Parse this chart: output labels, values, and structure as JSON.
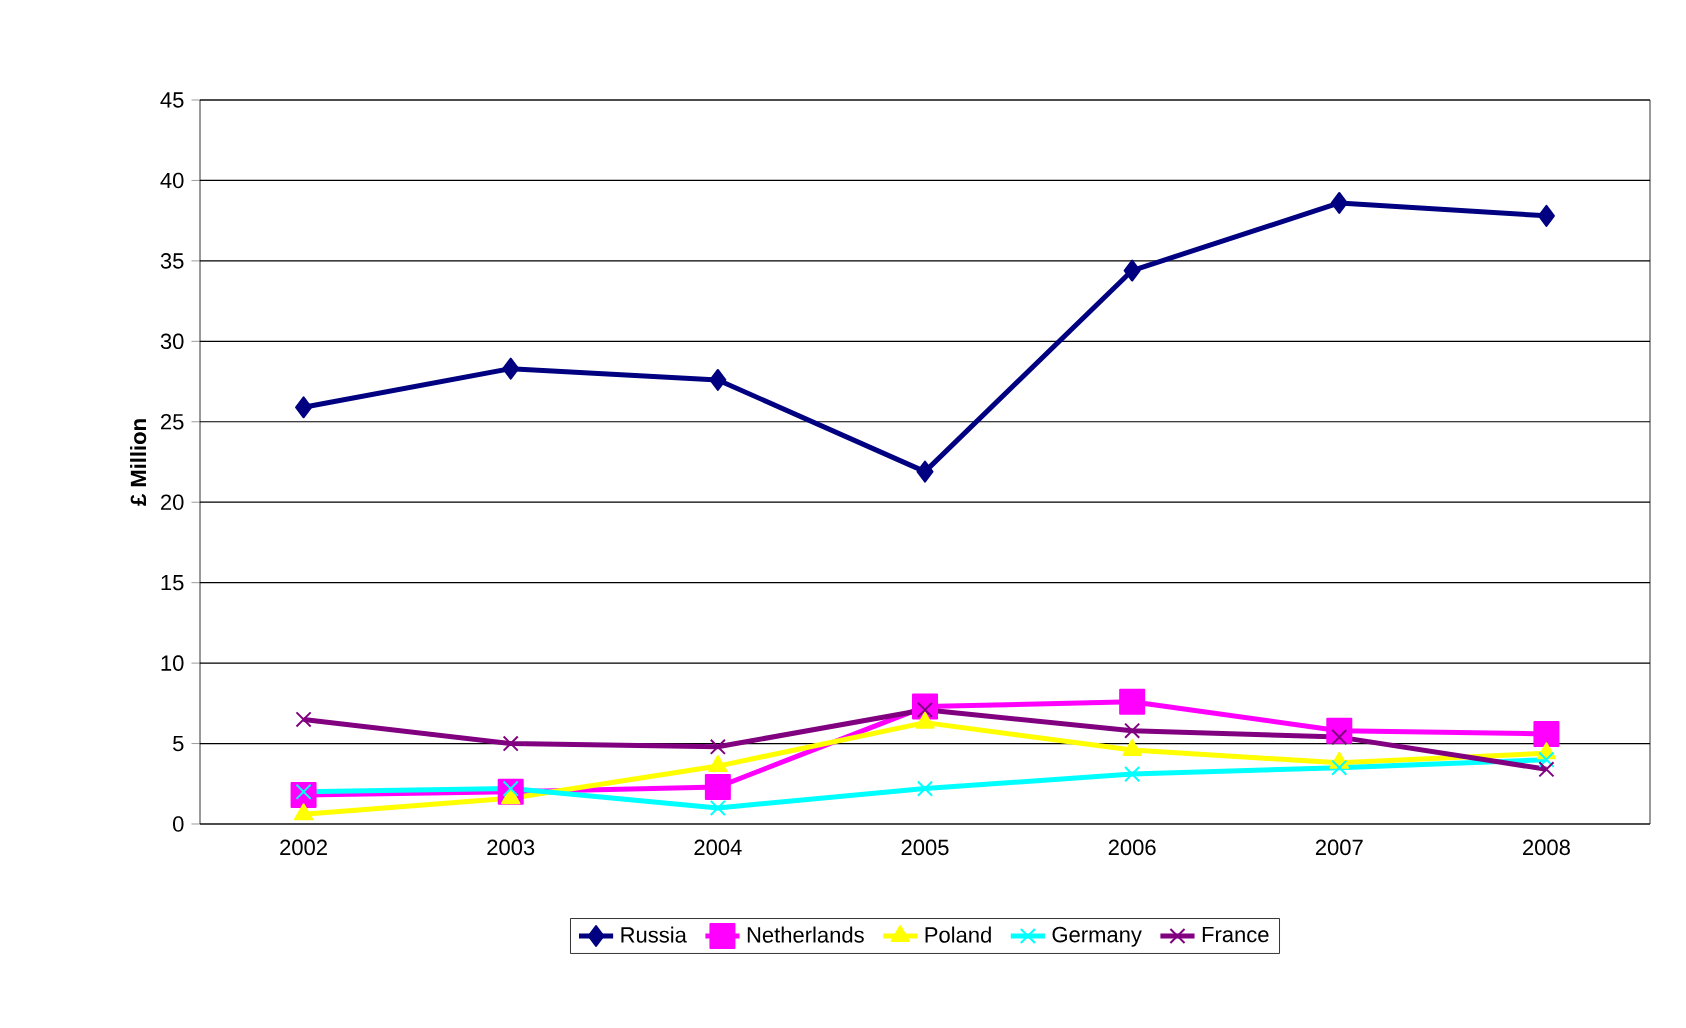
{
  "chart_data": {
    "type": "line",
    "ylabel": "£ Million",
    "categories": [
      "2002",
      "2003",
      "2004",
      "2005",
      "2006",
      "2007",
      "2008"
    ],
    "series": [
      {
        "name": "Russia",
        "color": "#000080",
        "marker": "diamond",
        "values": [
          25.9,
          28.3,
          27.6,
          21.9,
          34.4,
          38.6,
          37.8
        ]
      },
      {
        "name": "Netherlands",
        "color": "#ff00ff",
        "marker": "square",
        "values": [
          1.8,
          2.0,
          2.3,
          7.3,
          7.6,
          5.8,
          5.6
        ]
      },
      {
        "name": "Poland",
        "color": "#ffff00",
        "marker": "triangle",
        "values": [
          0.6,
          1.6,
          3.6,
          6.3,
          4.6,
          3.8,
          4.4
        ]
      },
      {
        "name": "Germany",
        "color": "#00ffff",
        "marker": "cross",
        "values": [
          2.0,
          2.2,
          1.0,
          2.2,
          3.1,
          3.5,
          4.0
        ]
      },
      {
        "name": "France",
        "color": "#800080",
        "marker": "cross",
        "values": [
          6.5,
          5.0,
          4.8,
          7.1,
          5.8,
          5.4,
          3.4
        ]
      }
    ],
    "ylim": [
      0,
      45
    ],
    "yticks": [
      0,
      5,
      10,
      15,
      20,
      25,
      30,
      35,
      40,
      45
    ],
    "grid": "y",
    "legend": "bottom"
  }
}
